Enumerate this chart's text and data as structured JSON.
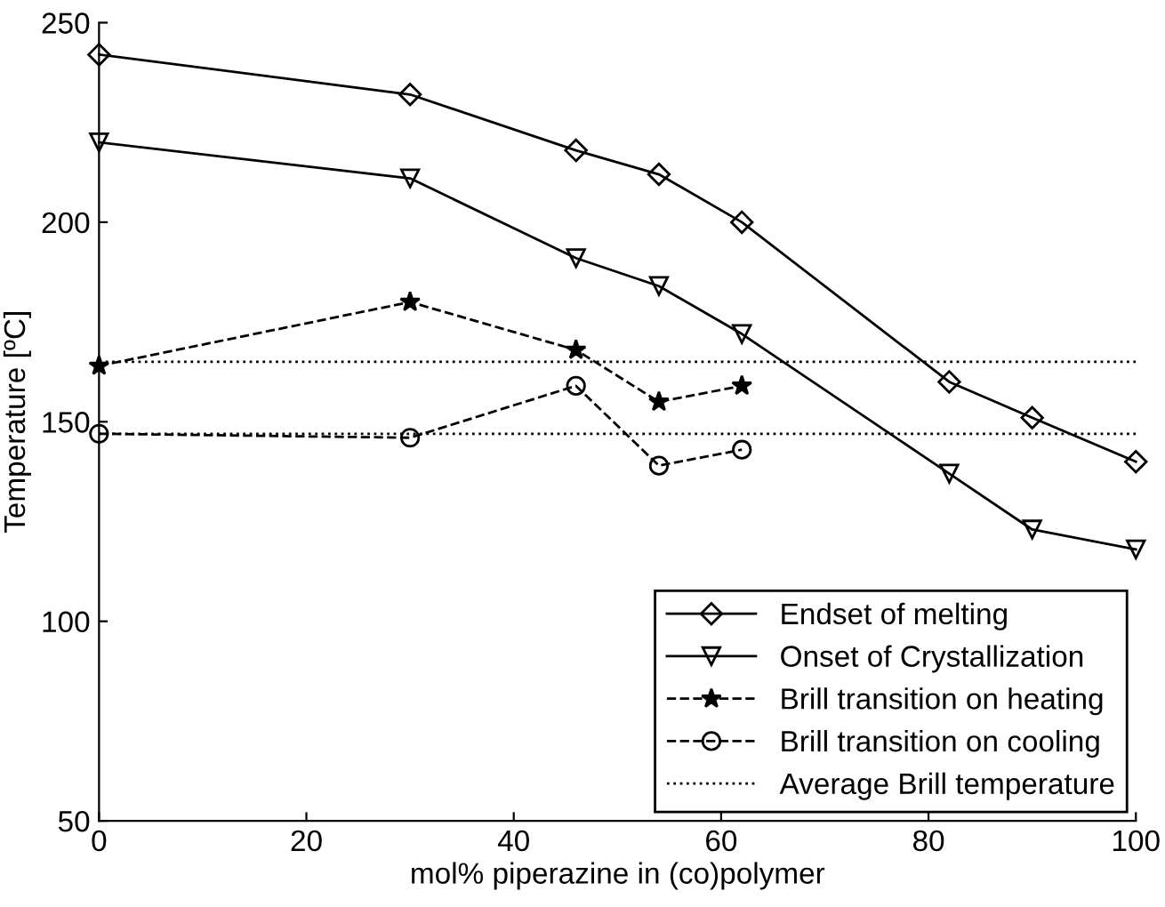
{
  "chart_data": {
    "type": "line",
    "xlabel": "mol% piperazine in (co)polymer",
    "ylabel": "Temperature [ºC]",
    "xlim": [
      0,
      100
    ],
    "xticks": [
      0,
      20,
      40,
      60,
      80,
      100
    ],
    "ylim": [
      50,
      250
    ],
    "yticks": [
      50,
      100,
      150,
      200,
      250
    ],
    "grid": false,
    "legend": "bottom right",
    "series": [
      {
        "name": "Endset of melting",
        "color": "#000000",
        "marker": "diamond",
        "line_style": "solid",
        "x": [
          0,
          30,
          46,
          54,
          62,
          82,
          90,
          100
        ],
        "values": [
          242,
          232,
          218,
          212,
          200,
          160,
          151,
          140
        ]
      },
      {
        "name": "Onset of Crystallization",
        "color": "#000000",
        "marker": "triangle",
        "line_style": "solid",
        "x": [
          0,
          30,
          46,
          54,
          62,
          82,
          90,
          100
        ],
        "values": [
          220,
          211,
          191,
          184,
          172,
          137,
          123,
          118
        ]
      },
      {
        "name": "Brill transition on heating",
        "color": "#000000",
        "marker": "star",
        "line_style": "dashed",
        "x": [
          0,
          30,
          46,
          54,
          62
        ],
        "values": [
          164,
          180,
          168,
          155,
          159
        ]
      },
      {
        "name": "Brill transition on cooling",
        "color": "#000000",
        "marker": "circle",
        "line_style": "dashed",
        "x": [
          0,
          30,
          46,
          54,
          62
        ],
        "values": [
          147,
          146,
          159,
          139,
          143
        ]
      }
    ],
    "ref_lines": [
      {
        "axis": "y",
        "value": 165,
        "label": "Average Brill temperature",
        "line_style": "dotted",
        "color": "#000000"
      },
      {
        "axis": "y",
        "value": 147,
        "line_style": "dotted",
        "color": "#000000"
      }
    ]
  }
}
